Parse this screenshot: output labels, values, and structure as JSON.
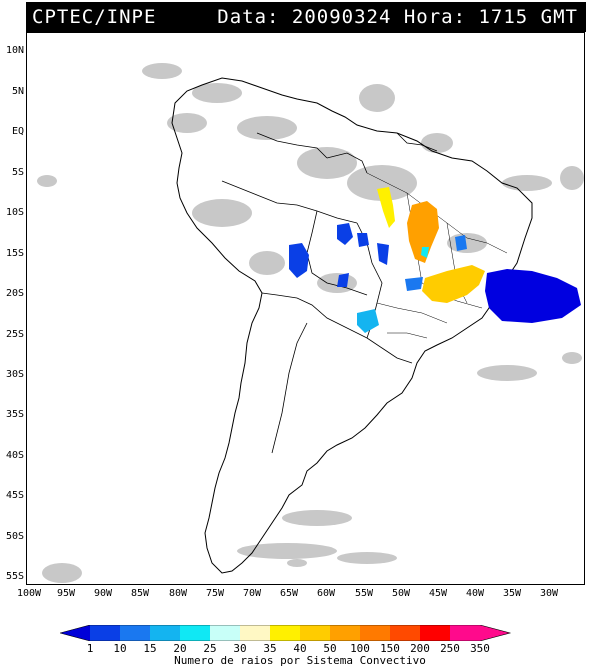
{
  "title": {
    "left": "CPTEC/INPE",
    "right": "Data: 20090324 Hora: 1715 GMT"
  },
  "lat_ticks": [
    "10N",
    "5N",
    "EQ",
    "5S",
    "10S",
    "15S",
    "20S",
    "25S",
    "30S",
    "35S",
    "40S",
    "45S",
    "50S",
    "55S"
  ],
  "lon_ticks": [
    "100W",
    "95W",
    "90W",
    "85W",
    "80W",
    "75W",
    "70W",
    "65W",
    "60W",
    "55W",
    "50W",
    "45W",
    "40W",
    "35W",
    "30W"
  ],
  "legend": {
    "labels": [
      "1",
      "10",
      "15",
      "20",
      "25",
      "30",
      "35",
      "40",
      "50",
      "100",
      "150",
      "200",
      "250",
      "350"
    ],
    "colors": [
      "#0000d8",
      "#0a3fe6",
      "#1a78f0",
      "#14b4f0",
      "#10e8f4",
      "#c8fff8",
      "#fff8c4",
      "#fff000",
      "#ffcc00",
      "#ffa000",
      "#ff7a00",
      "#ff4a00",
      "#ff0000",
      "#ff0a8c"
    ],
    "caption": "Numero de raios por Sistema Convectivo"
  }
}
